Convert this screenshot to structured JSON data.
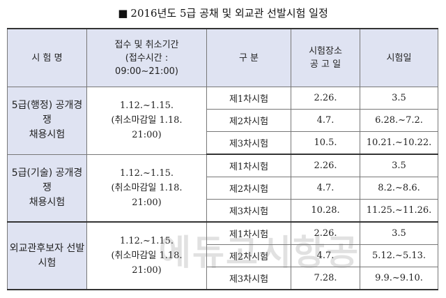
{
  "title": "2016년도 5급 공채 및 외교관 선발시험 일정",
  "title_bullet": "■",
  "table": {
    "headers": {
      "exam_name": "시 험 명",
      "period_line1": "접수 및 취소기간",
      "period_line2": "(접수시간 :",
      "period_line3": "09:00~21:00)",
      "category": "구  분",
      "venue_line1": "시험장소",
      "venue_line2": "공 고 일",
      "exam_date": "시험일"
    },
    "groups": [
      {
        "name_line1": "5급(행정) 공개경쟁",
        "name_line2": "채용시험",
        "period_line1": "1.12.~1.15.",
        "period_line2": "(취소마감일 1.18.",
        "period_line3": "21:00)",
        "rows": [
          {
            "stage": "제1차시험",
            "venue": "2.26.",
            "date": "3.5"
          },
          {
            "stage": "제2차시험",
            "venue": "4.7.",
            "date": "6.28.~7.2."
          },
          {
            "stage": "제3차시험",
            "venue": "10.5.",
            "date": "10.21.~10.22."
          }
        ]
      },
      {
        "name_line1": "5급(기술) 공개경쟁",
        "name_line2": "채용시험",
        "period_line1": "1.12.~1.15.",
        "period_line2": "(취소마감일 1.18.",
        "period_line3": "21:00)",
        "rows": [
          {
            "stage": "제1차시험",
            "venue": "2.26.",
            "date": "3.5"
          },
          {
            "stage": "제2차시험",
            "venue": "4.7.",
            "date": "8.2.~8.6."
          },
          {
            "stage": "제3차시험",
            "venue": "10.28.",
            "date": "11.25.~11.26."
          }
        ]
      },
      {
        "name_line1": "외교관후보자 선발",
        "name_line2": "시험",
        "period_line1": "1.12.~1.15.",
        "period_line2": "(취소마감일 1.18.",
        "period_line3": "21:00)",
        "rows": [
          {
            "stage": "제1차시험",
            "venue": "2.26.",
            "date": "3.5"
          },
          {
            "stage": "제2차시험",
            "venue": "4.7.",
            "date": "5.12.~5.13."
          },
          {
            "stage": "제3차시험",
            "venue": "7.28.",
            "date": "9.9.~9.10."
          }
        ]
      }
    ]
  },
  "watermark": "에듀고시항공"
}
